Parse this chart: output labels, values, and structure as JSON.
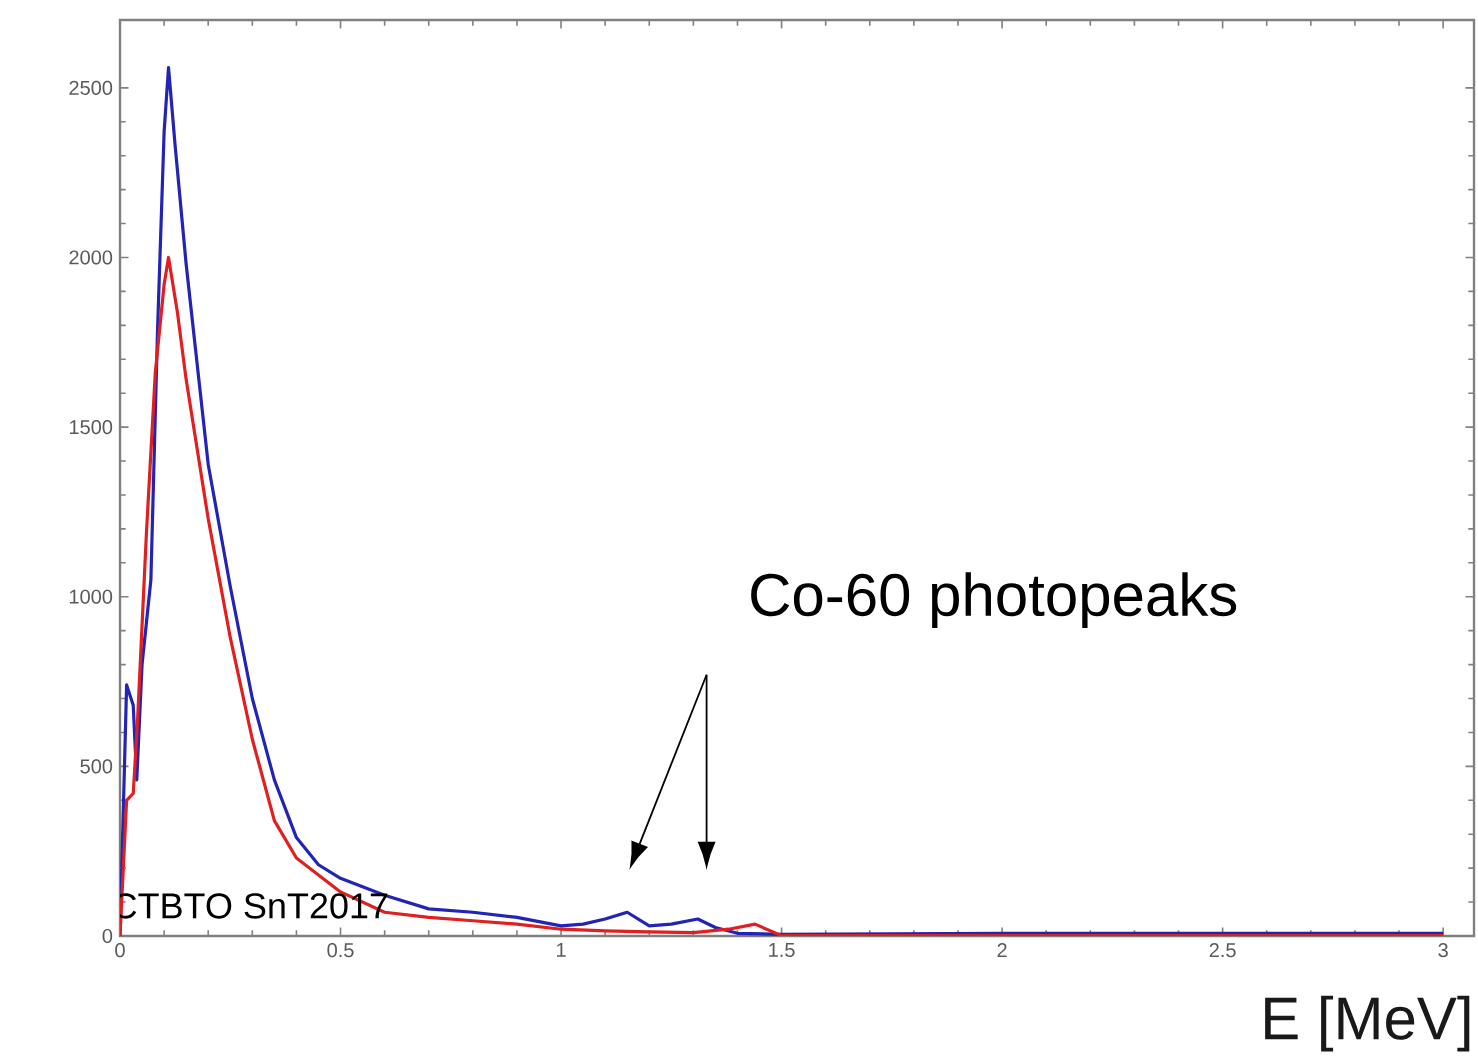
{
  "chart_data": {
    "type": "line",
    "xlabel": "E [MeV]",
    "xlim": [
      0,
      3.07
    ],
    "ylim": [
      0,
      2700
    ],
    "xticks": [
      0,
      0.5,
      1,
      1.5,
      2,
      2.5,
      3
    ],
    "yticks": [
      0,
      500,
      1000,
      1500,
      2000,
      2500
    ],
    "annotations": [
      "Co-60 photopeaks",
      "CTBTO SnT2017"
    ],
    "series": [
      {
        "color": "#2323b4",
        "x": [
          0,
          0.015,
          0.03,
          0.038,
          0.05,
          0.07,
          0.085,
          0.1,
          0.11,
          0.125,
          0.15,
          0.2,
          0.25,
          0.3,
          0.35,
          0.4,
          0.45,
          0.5,
          0.6,
          0.7,
          0.8,
          0.9,
          1.0,
          1.05,
          1.1,
          1.15,
          1.2,
          1.25,
          1.31,
          1.35,
          1.4,
          1.5,
          2.0,
          2.5,
          3.0
        ],
        "values": [
          0,
          740,
          680,
          460,
          800,
          1050,
          1780,
          2370,
          2560,
          2330,
          1980,
          1390,
          1030,
          700,
          460,
          290,
          210,
          170,
          120,
          80,
          70,
          55,
          30,
          35,
          50,
          70,
          30,
          35,
          50,
          25,
          8,
          5,
          8,
          8,
          8
        ]
      },
      {
        "color": "#e02020",
        "x": [
          0,
          0.015,
          0.03,
          0.04,
          0.06,
          0.08,
          0.1,
          0.11,
          0.13,
          0.15,
          0.2,
          0.25,
          0.3,
          0.35,
          0.4,
          0.5,
          0.6,
          0.7,
          0.8,
          0.9,
          1.0,
          1.1,
          1.2,
          1.3,
          1.38,
          1.44,
          1.5,
          2.0,
          2.6,
          3.0
        ],
        "values": [
          0,
          400,
          420,
          640,
          1190,
          1660,
          1920,
          2000,
          1840,
          1640,
          1230,
          880,
          580,
          340,
          230,
          130,
          70,
          55,
          45,
          35,
          20,
          15,
          12,
          10,
          20,
          35,
          1,
          1,
          1,
          1
        ]
      }
    ]
  }
}
